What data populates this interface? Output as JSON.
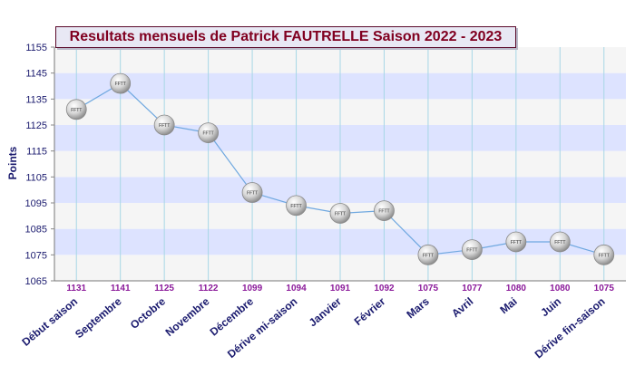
{
  "chart_data": {
    "type": "line",
    "title": "Resultats mensuels de Patrick FAUTRELLE Saison 2022 - 2023",
    "xlabel": "",
    "ylabel": "Points",
    "ylim": [
      1065,
      1155
    ],
    "ytick_step": 10,
    "grid": true,
    "categories": [
      "Début saison",
      "Septembre",
      "Octobre",
      "Novembre",
      "Décembre",
      "Dérive mi-saison",
      "Janvier",
      "Février",
      "Mars",
      "Avril",
      "Mai",
      "Juin",
      "Dérive fin-saison"
    ],
    "series": [
      {
        "values": [
          1131,
          1141,
          1125,
          1122,
          1099,
          1094,
          1091,
          1092,
          1075,
          1077,
          1080,
          1080,
          1075
        ]
      }
    ],
    "data_labels": [
      "1131",
      "1141",
      "1125",
      "1122",
      "1099",
      "1094",
      "1091",
      "1092",
      "1075",
      "1077",
      "1080",
      "1080",
      "1075"
    ],
    "marker_text": "FFTT",
    "colors": {
      "line": "#6fa8e0",
      "band_light": "#f5f5f5",
      "band_blue": "#dde3ff",
      "vgrid": "#a7d7e6",
      "axis_text": "#1a1a6e",
      "value_labels": "#8b1a9a",
      "title_text": "#800020"
    }
  }
}
